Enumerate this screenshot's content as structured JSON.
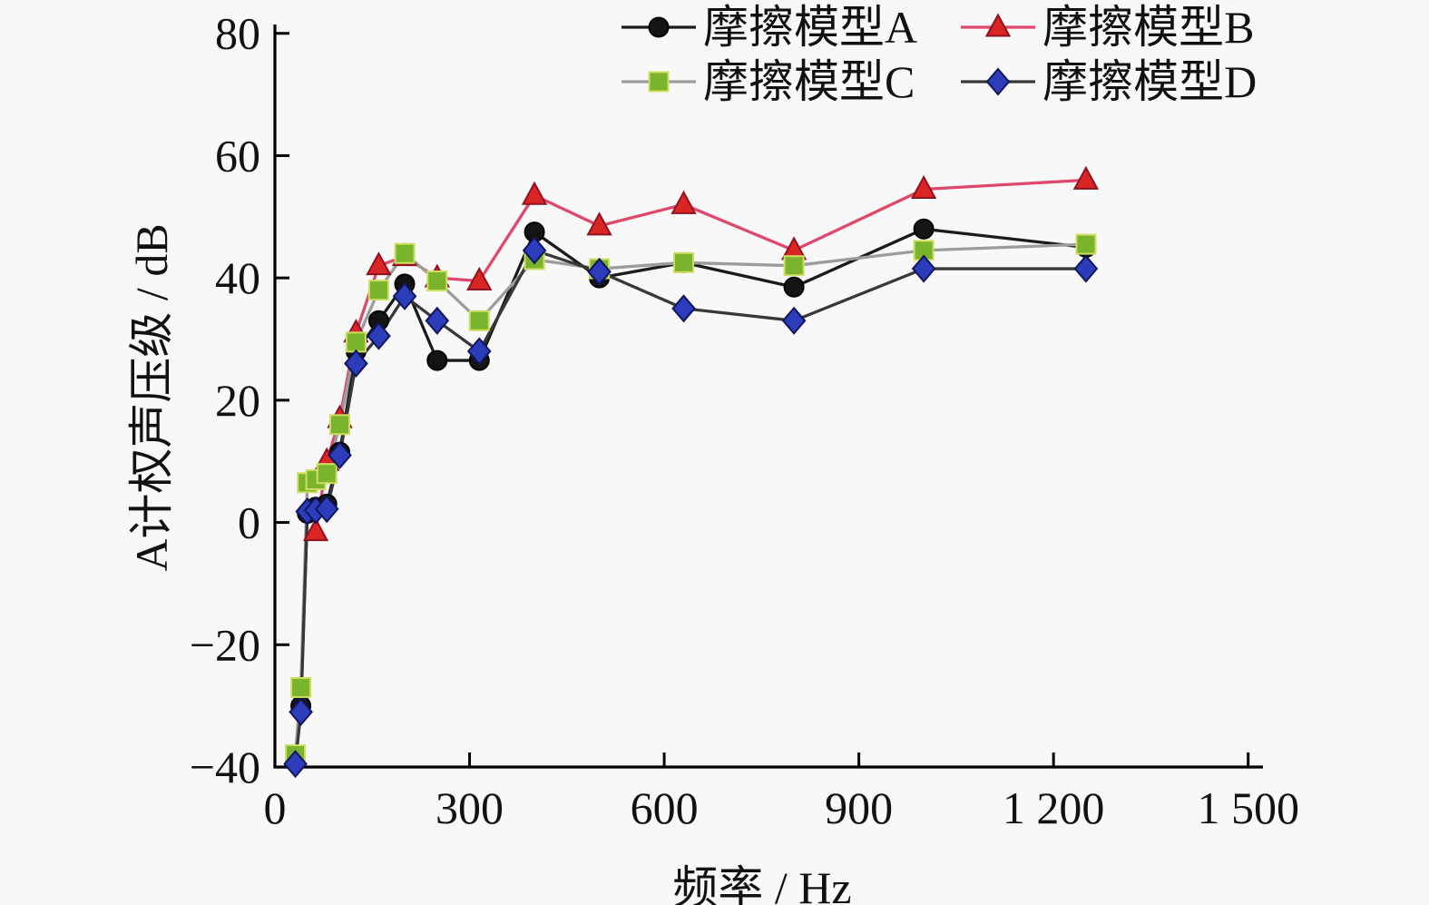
{
  "background_color": "#f8f8f8",
  "chart_data": {
    "type": "line",
    "title": "",
    "xlabel": "频率 / Hz",
    "ylabel": "A计权声压级 / dB",
    "xlim": [
      0,
      1520
    ],
    "ylim": [
      -40,
      81
    ],
    "grid": false,
    "legend_position": "top-center",
    "x_ticks": [
      0,
      300,
      600,
      900,
      1200,
      1500
    ],
    "x_tick_labels": [
      "0",
      "300",
      "600",
      "900",
      "1 200",
      "1 500"
    ],
    "y_ticks": [
      -40,
      -20,
      0,
      20,
      40,
      60,
      80
    ],
    "y_tick_labels": [
      "−40",
      "−20",
      "0",
      "20",
      "40",
      "60",
      "80"
    ],
    "x_hz": [
      31.5,
      40,
      50,
      63,
      80,
      100,
      125,
      160,
      200,
      250,
      315,
      400,
      500,
      630,
      800,
      1000,
      1250
    ],
    "series": [
      {
        "name": "摩擦模型A",
        "marker": "circle",
        "line_color": "#1b1b1b",
        "marker_fill": "#141414",
        "marker_edge": "#000000",
        "values": [
          null,
          -30,
          1.5,
          2.5,
          3,
          11.5,
          28,
          33,
          39,
          26.5,
          26.5,
          47.5,
          40,
          42.5,
          38.5,
          48,
          45
        ]
      },
      {
        "name": "摩擦模型B",
        "marker": "triangle",
        "line_color": "#e0476c",
        "marker_fill": "#da2525",
        "marker_edge": "#8f1220",
        "values": [
          null,
          null,
          null,
          -1.5,
          10,
          17,
          31,
          42,
          43.5,
          40,
          39.5,
          53.5,
          48.5,
          52,
          44.5,
          54.5,
          56
        ]
      },
      {
        "name": "摩擦模型C",
        "marker": "square",
        "line_color": "#9c9c9c",
        "marker_fill": "#79b42c",
        "marker_edge": "#cede62",
        "values": [
          -38,
          -27,
          6.5,
          7,
          8,
          16,
          29.5,
          38,
          44,
          39.5,
          33,
          43,
          41.5,
          42.5,
          42,
          44.5,
          45.5
        ]
      },
      {
        "name": "摩擦模型D",
        "marker": "diamond",
        "line_color": "#383838",
        "marker_fill": "#2c3cba",
        "marker_edge": "#10165a",
        "values": [
          -39.5,
          -31,
          1.8,
          2,
          2.2,
          11,
          26,
          30.5,
          37,
          33,
          28,
          44.5,
          41,
          35,
          33,
          41.5,
          41.5
        ]
      }
    ]
  }
}
